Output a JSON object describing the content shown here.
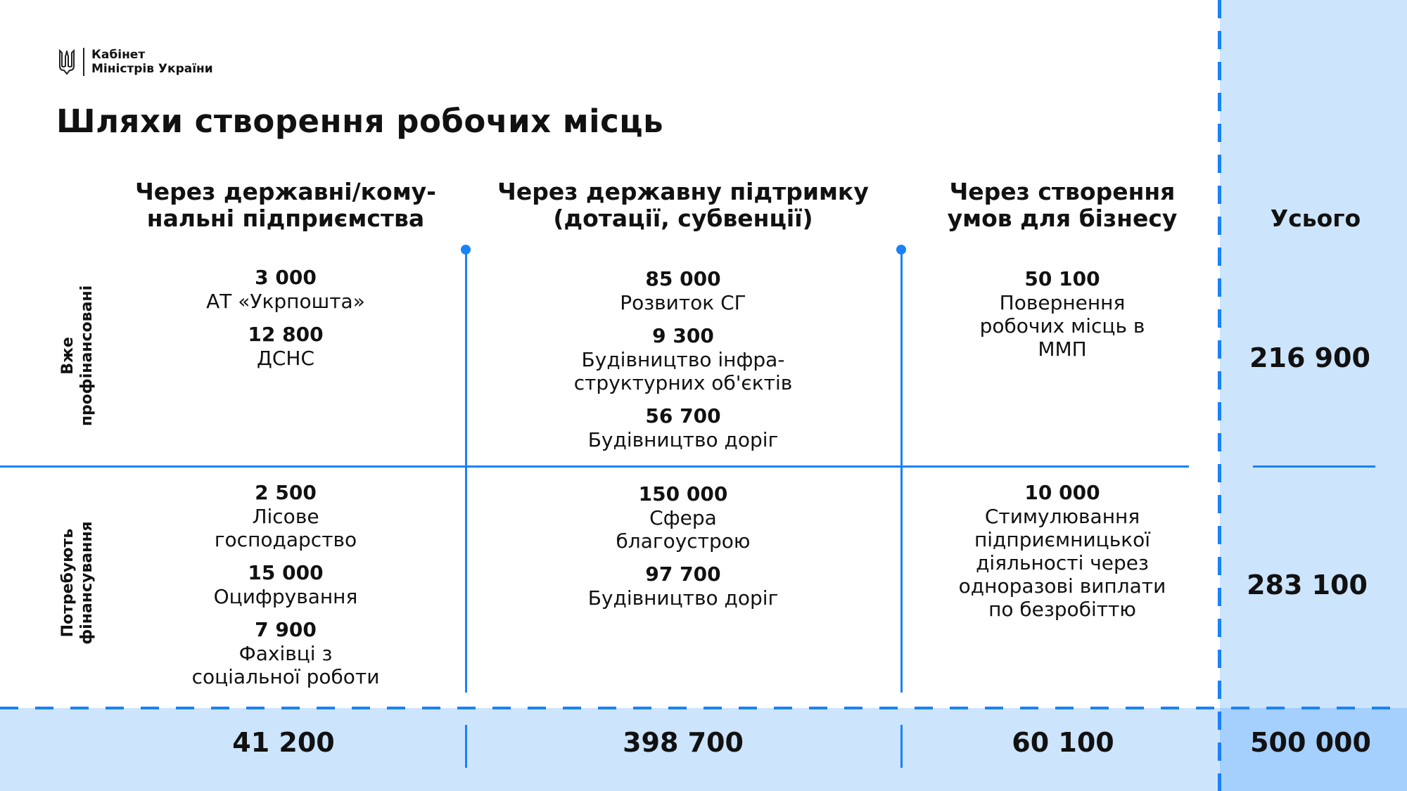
{
  "logo": {
    "line1": "Кабінет",
    "line2": "Міністрів України",
    "emblem": "tryzub-icon"
  },
  "title": "Шляхи створення робочих місць",
  "columns": [
    {
      "header": "Через державні/кому-\nнальні підприємства",
      "funded": [
        {
          "value": "3 000",
          "label": "АТ «Укрпошта»"
        },
        {
          "value": "12 800",
          "label": "ДСНС"
        }
      ],
      "needs": [
        {
          "value": "2 500",
          "label": "Лісове\nгосподарство"
        },
        {
          "value": "15 000",
          "label": "Оцифрування"
        },
        {
          "value": "7 900",
          "label": "Фахівці з\nсоціальної роботи"
        }
      ],
      "total": "41 200"
    },
    {
      "header": "Через державну підтримку\n(дотації, субвенції)",
      "funded": [
        {
          "value": "85 000",
          "label": "Розвиток СГ"
        },
        {
          "value": "9 300",
          "label": "Будівництво інфра-\nструктурних об'єктів"
        },
        {
          "value": "56 700",
          "label": "Будівництво доріг"
        }
      ],
      "needs": [
        {
          "value": "150 000",
          "label": "Сфера\nблагоустрою"
        },
        {
          "value": "97 700",
          "label": "Будівництво доріг"
        }
      ],
      "total": "398 700"
    },
    {
      "header": "Через створення\nумов для бізнесу",
      "funded": [
        {
          "value": "50 100",
          "label": "Повернення\nробочих місць в\nММП"
        }
      ],
      "needs": [
        {
          "value": "10 000",
          "label": "Стимулювання\nпідприємницької\nдіяльності через\nодноразові виплати\nпо безробіттю"
        }
      ],
      "total": "60 100"
    }
  ],
  "rows": {
    "funded_label": "Вже\nпрофінансовані",
    "needs_label": "Потребують\nфінансування"
  },
  "totals": {
    "header": "Усього",
    "funded": "216 900",
    "needs": "283 100",
    "grand": "500 000"
  },
  "colors": {
    "accent": "#1a82f7",
    "light": "#cce4fc",
    "mid": "#a5cffd"
  }
}
